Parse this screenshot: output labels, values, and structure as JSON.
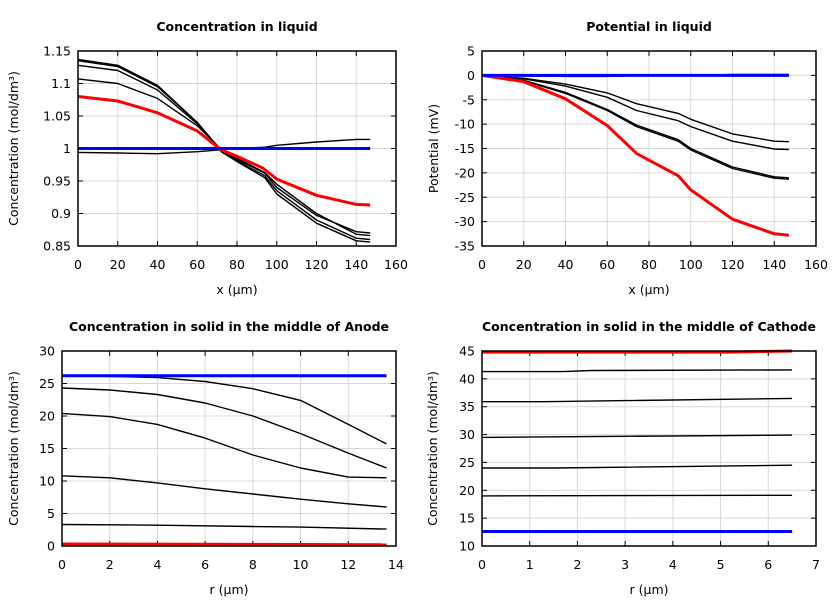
{
  "chart_data": [
    {
      "type": "line",
      "title": "Concentration in liquid",
      "xlabel": "x (µm)",
      "ylabel": "Concentration (mol/dm³)",
      "xlim": [
        0,
        160
      ],
      "ylim": [
        0.85,
        1.15
      ],
      "xticks": [
        0,
        20,
        40,
        60,
        80,
        100,
        120,
        140,
        160
      ],
      "yticks": [
        0.85,
        0.9,
        0.95,
        1,
        1.05,
        1.1,
        1.15
      ],
      "ytick_labels": [
        "0.85",
        "0.9",
        "0.95",
        "1",
        "1.05",
        "1.1",
        "1.15"
      ],
      "grid": true,
      "series": [
        {
          "color": "#000000",
          "x": [
            0,
            20,
            40,
            60,
            72,
            80,
            94,
            100,
            120,
            140,
            147
          ],
          "y": [
            1.137,
            1.128,
            1.097,
            1.04,
            0.995,
            0.98,
            0.955,
            0.93,
            0.885,
            0.858,
            0.856
          ]
        },
        {
          "color": "#000000",
          "x": [
            0,
            20,
            40,
            60,
            72,
            80,
            94,
            100,
            120,
            140,
            147
          ],
          "y": [
            1.135,
            1.126,
            1.095,
            1.04,
            0.997,
            0.981,
            0.958,
            0.935,
            0.89,
            0.862,
            0.86
          ]
        },
        {
          "color": "#000000",
          "x": [
            0,
            20,
            40,
            60,
            72,
            80,
            94,
            100,
            120,
            140,
            147
          ],
          "y": [
            1.128,
            1.12,
            1.09,
            1.038,
            0.998,
            0.983,
            0.962,
            0.94,
            0.897,
            0.872,
            0.87
          ]
        },
        {
          "color": "#000000",
          "x": [
            0,
            20,
            40,
            60,
            72,
            80,
            94,
            100,
            120,
            140,
            147
          ],
          "y": [
            1.107,
            1.1,
            1.077,
            1.035,
            0.999,
            0.985,
            0.963,
            0.945,
            0.9,
            0.868,
            0.866
          ]
        },
        {
          "color": "#000000",
          "x": [
            0,
            20,
            40,
            60,
            72,
            80,
            94,
            100,
            120,
            140,
            147
          ],
          "y": [
            0.994,
            0.993,
            0.992,
            0.995,
            0.998,
            1.0,
            1.002,
            1.005,
            1.01,
            1.014,
            1.014
          ]
        },
        {
          "color": "#ff0000",
          "x": [
            0,
            20,
            40,
            60,
            72,
            80,
            93,
            100,
            120,
            140,
            147
          ],
          "y": [
            1.08,
            1.073,
            1.055,
            1.027,
            0.998,
            0.988,
            0.97,
            0.953,
            0.928,
            0.914,
            0.913
          ]
        },
        {
          "color": "#0000ff",
          "x": [
            0,
            147
          ],
          "y": [
            1.0,
            1.0
          ]
        }
      ]
    },
    {
      "type": "line",
      "title": "Potential in liquid",
      "xlabel": "x (µm)",
      "ylabel": "Potential (mV)",
      "xlim": [
        0,
        160
      ],
      "ylim": [
        -35,
        5
      ],
      "xticks": [
        0,
        20,
        40,
        60,
        80,
        100,
        120,
        140,
        160
      ],
      "yticks": [
        -35,
        -30,
        -25,
        -20,
        -15,
        -10,
        -5,
        0,
        5
      ],
      "ytick_labels": [
        "-35",
        "-30",
        "-25",
        "-20",
        "-15",
        "-10",
        "-5",
        "0",
        "5"
      ],
      "grid": true,
      "series": [
        {
          "color": "#000000",
          "x": [
            0,
            20,
            40,
            60,
            80,
            100,
            120,
            147
          ],
          "y": [
            0,
            -0.1,
            -0.2,
            -0.2,
            0,
            0,
            0.2,
            0.2
          ]
        },
        {
          "color": "#000000",
          "x": [
            0,
            20,
            40,
            60,
            74,
            94,
            100,
            120,
            140,
            147
          ],
          "y": [
            0,
            -0.6,
            -1.8,
            -3.6,
            -5.8,
            -7.8,
            -9,
            -12,
            -13.5,
            -13.6
          ]
        },
        {
          "color": "#000000",
          "x": [
            0,
            20,
            40,
            60,
            74,
            94,
            100,
            120,
            140,
            147
          ],
          "y": [
            0,
            -0.7,
            -2.2,
            -4.5,
            -7.2,
            -9.3,
            -10.5,
            -13.5,
            -15.1,
            -15.2
          ]
        },
        {
          "color": "#000000",
          "x": [
            0,
            20,
            40,
            60,
            74,
            94,
            100,
            120,
            140,
            147
          ],
          "y": [
            0,
            -1,
            -3.5,
            -7,
            -10.2,
            -13.2,
            -15,
            -18.8,
            -20.8,
            -21
          ]
        },
        {
          "color": "#000000",
          "x": [
            0,
            20,
            40,
            60,
            74,
            94,
            100,
            120,
            140,
            147
          ],
          "y": [
            0,
            -1.1,
            -3.7,
            -7.2,
            -10.5,
            -13.5,
            -15.3,
            -19.1,
            -21.1,
            -21.3
          ]
        },
        {
          "color": "#ff0000",
          "x": [
            0,
            20,
            40,
            60,
            74,
            94,
            100,
            120,
            140,
            147
          ],
          "y": [
            0,
            -1.3,
            -4.8,
            -10.3,
            -16,
            -20.6,
            -23.5,
            -29.5,
            -32.5,
            -32.8
          ]
        },
        {
          "color": "#0000ff",
          "x": [
            0,
            147
          ],
          "y": [
            0,
            0
          ]
        }
      ]
    },
    {
      "type": "line",
      "title": "Concentration in solid in the middle of Anode",
      "xlabel": "r (µm)",
      "ylabel": "Concentration (mol/dm³)",
      "xlim": [
        0,
        14
      ],
      "ylim": [
        0,
        30
      ],
      "xticks": [
        0,
        2,
        4,
        6,
        8,
        10,
        12,
        14
      ],
      "yticks": [
        0,
        5,
        10,
        15,
        20,
        25,
        30
      ],
      "ytick_labels": [
        "0",
        "5",
        "10",
        "15",
        "20",
        "25",
        "30"
      ],
      "grid": true,
      "series": [
        {
          "color": "#000000",
          "x": [
            0,
            2,
            4,
            6,
            8,
            10,
            12,
            13.6
          ],
          "y": [
            26.2,
            26.1,
            25.9,
            25.3,
            24.2,
            22.4,
            18.7,
            15.7
          ]
        },
        {
          "color": "#000000",
          "x": [
            0,
            2,
            4,
            6,
            8,
            10,
            12,
            13.6
          ],
          "y": [
            24.3,
            24,
            23.3,
            22,
            20,
            17.3,
            14.3,
            12
          ]
        },
        {
          "color": "#000000",
          "x": [
            0,
            2,
            4,
            6,
            8,
            10,
            12,
            13.6
          ],
          "y": [
            20.4,
            19.9,
            18.7,
            16.6,
            14,
            12,
            10.6,
            10.5
          ]
        },
        {
          "color": "#000000",
          "x": [
            0,
            2,
            4,
            6,
            8,
            10,
            12,
            13.6
          ],
          "y": [
            10.8,
            10.5,
            9.7,
            8.8,
            8,
            7.2,
            6.5,
            6
          ]
        },
        {
          "color": "#000000",
          "x": [
            0,
            4,
            8,
            10,
            13.6
          ],
          "y": [
            3.3,
            3.2,
            3.0,
            2.9,
            2.6
          ]
        },
        {
          "color": "#ff0000",
          "x": [
            0,
            13.6
          ],
          "y": [
            0.3,
            0.2
          ]
        },
        {
          "color": "#0000ff",
          "x": [
            0,
            13.6
          ],
          "y": [
            26.2,
            26.2
          ]
        }
      ]
    },
    {
      "type": "line",
      "title": "Concentration in solid in the middle of Cathode",
      "xlabel": "r (µm)",
      "ylabel": "Concentration (mol/dm³)",
      "xlim": [
        0,
        7
      ],
      "ylim": [
        10,
        45
      ],
      "xticks": [
        0,
        1,
        2,
        3,
        4,
        5,
        6,
        7
      ],
      "yticks": [
        10,
        15,
        20,
        25,
        30,
        35,
        40,
        45
      ],
      "ytick_labels": [
        "10",
        "15",
        "20",
        "25",
        "30",
        "35",
        "40",
        "45"
      ],
      "grid": true,
      "series": [
        {
          "color": "#000000",
          "x": [
            0,
            1.7,
            2.3,
            6.5
          ],
          "y": [
            41.3,
            41.3,
            41.5,
            41.6
          ]
        },
        {
          "color": "#000000",
          "x": [
            0,
            1.3,
            6.5
          ],
          "y": [
            35.9,
            35.9,
            36.5
          ]
        },
        {
          "color": "#000000",
          "x": [
            0,
            1.6,
            6.5
          ],
          "y": [
            29.5,
            29.6,
            29.9
          ]
        },
        {
          "color": "#000000",
          "x": [
            0,
            1.5,
            6.5
          ],
          "y": [
            24.0,
            24.0,
            24.5
          ]
        },
        {
          "color": "#000000",
          "x": [
            0,
            6.5
          ],
          "y": [
            19.0,
            19.1
          ]
        },
        {
          "color": "#ff0000",
          "x": [
            0,
            5.2,
            6.5
          ],
          "y": [
            44.8,
            44.8,
            45.0
          ]
        },
        {
          "color": "#0000ff",
          "x": [
            0,
            6.5
          ],
          "y": [
            12.6,
            12.6
          ]
        }
      ]
    }
  ]
}
